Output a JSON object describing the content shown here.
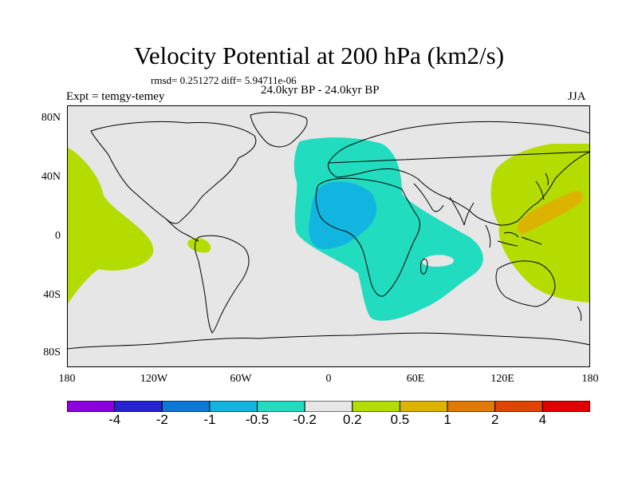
{
  "figure": {
    "title": "Velocity Potential at 200 hPa (km2/s)",
    "stats": "rmsd= 0.251272 diff= 5.94711e-06",
    "experiment": "Expt = temgy-temey",
    "period": "24.0kyr BP - 24.0kyr BP",
    "season": "JJA"
  },
  "axes": {
    "lat_labels": [
      "80N",
      "40N",
      "0",
      "40S",
      "80S"
    ],
    "lon_labels": [
      "180",
      "120W",
      "60W",
      "0",
      "60E",
      "120E",
      "180"
    ]
  },
  "colors": {
    "background_land_ocean": "#e6e6e6",
    "coast": "#000000"
  },
  "legend": {
    "bins": [
      {
        "color": "#8a00e0"
      },
      {
        "color": "#2424d6"
      },
      {
        "color": "#0a78d8"
      },
      {
        "color": "#12b4e0"
      },
      {
        "color": "#22dcc0"
      },
      {
        "color": "#e6e6e6"
      },
      {
        "color": "#b4dc00"
      },
      {
        "color": "#dcb400"
      },
      {
        "color": "#e07a00"
      },
      {
        "color": "#e04400"
      },
      {
        "color": "#e00000"
      }
    ],
    "labels": [
      "-4",
      "-2",
      "-1",
      "-0.5",
      "-0.2",
      "0.2",
      "0.5",
      "1",
      "2",
      "4"
    ]
  },
  "chart_data": {
    "type": "heatmap",
    "title": "Velocity Potential at 200 hPa (km2/s)",
    "projection": "cylindrical equidistant",
    "lon_range": [
      -180,
      180
    ],
    "lat_range": [
      -90,
      90
    ],
    "contour_levels": [
      -4,
      -2,
      -1,
      -0.5,
      -0.2,
      0.2,
      0.5,
      1,
      2,
      4
    ],
    "regions": [
      {
        "name": "Atlantic-Africa negative anomaly",
        "range": [
          -0.5,
          -0.2
        ]
      },
      {
        "name": "West Africa negative core",
        "range": [
          -1,
          -0.5
        ]
      },
      {
        "name": "Indian Ocean hole",
        "range": [
          -0.2,
          0.2
        ]
      },
      {
        "name": "West Pacific positive anomaly",
        "range": [
          0.2,
          0.5
        ]
      },
      {
        "name": "West Pacific positive core",
        "range": [
          0.5,
          1
        ]
      },
      {
        "name": "Central Pacific positive anomaly",
        "range": [
          0.2,
          0.5
        ]
      },
      {
        "name": "Eastern tropical Pacific small positive",
        "range": [
          0.2,
          0.5
        ]
      }
    ]
  }
}
